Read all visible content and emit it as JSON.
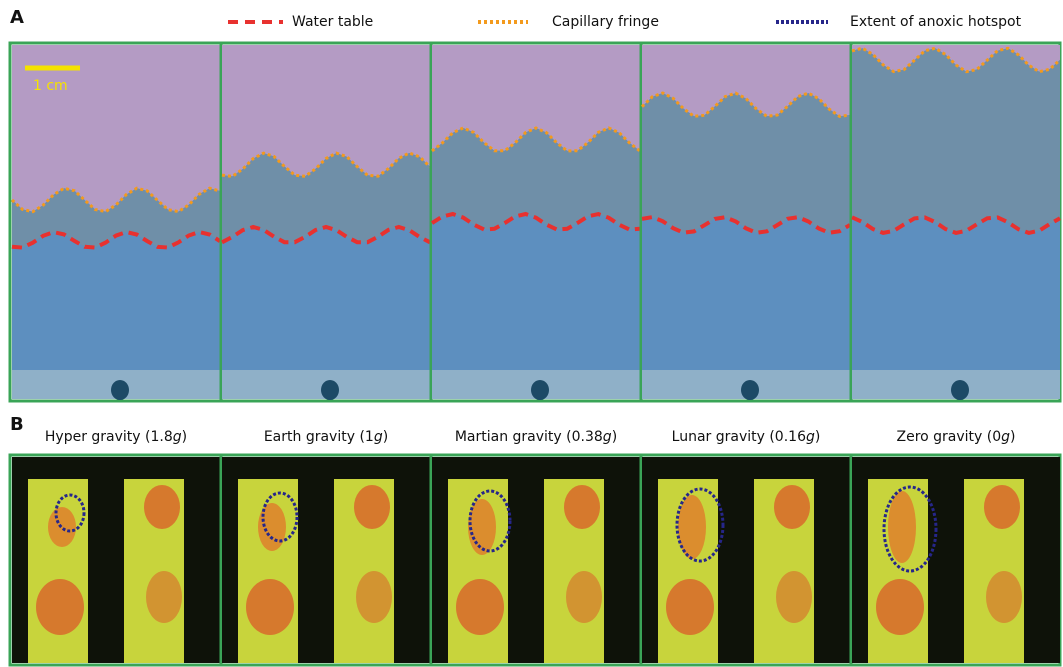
{
  "panel_a": {
    "label": "A",
    "legend": [
      "Water table",
      "Capillary fringe",
      "Extent of anoxic hotspot"
    ],
    "scale_bar": "1 cm"
  },
  "panel_b": {
    "label": "B",
    "titles": [
      {
        "text": "Hyper gravity (1.8",
        "italic": "g",
        "end": ")"
      },
      {
        "text": "Earth gravity (1",
        "italic": "g",
        "end": ")"
      },
      {
        "text": "Martian gravity (0.38",
        "italic": "g",
        "end": ")"
      },
      {
        "text": "Lunar gravity (0.16",
        "italic": "g",
        "end": ")"
      },
      {
        "text": "Zero gravity (0",
        "italic": "g",
        "end": ")"
      }
    ]
  }
}
